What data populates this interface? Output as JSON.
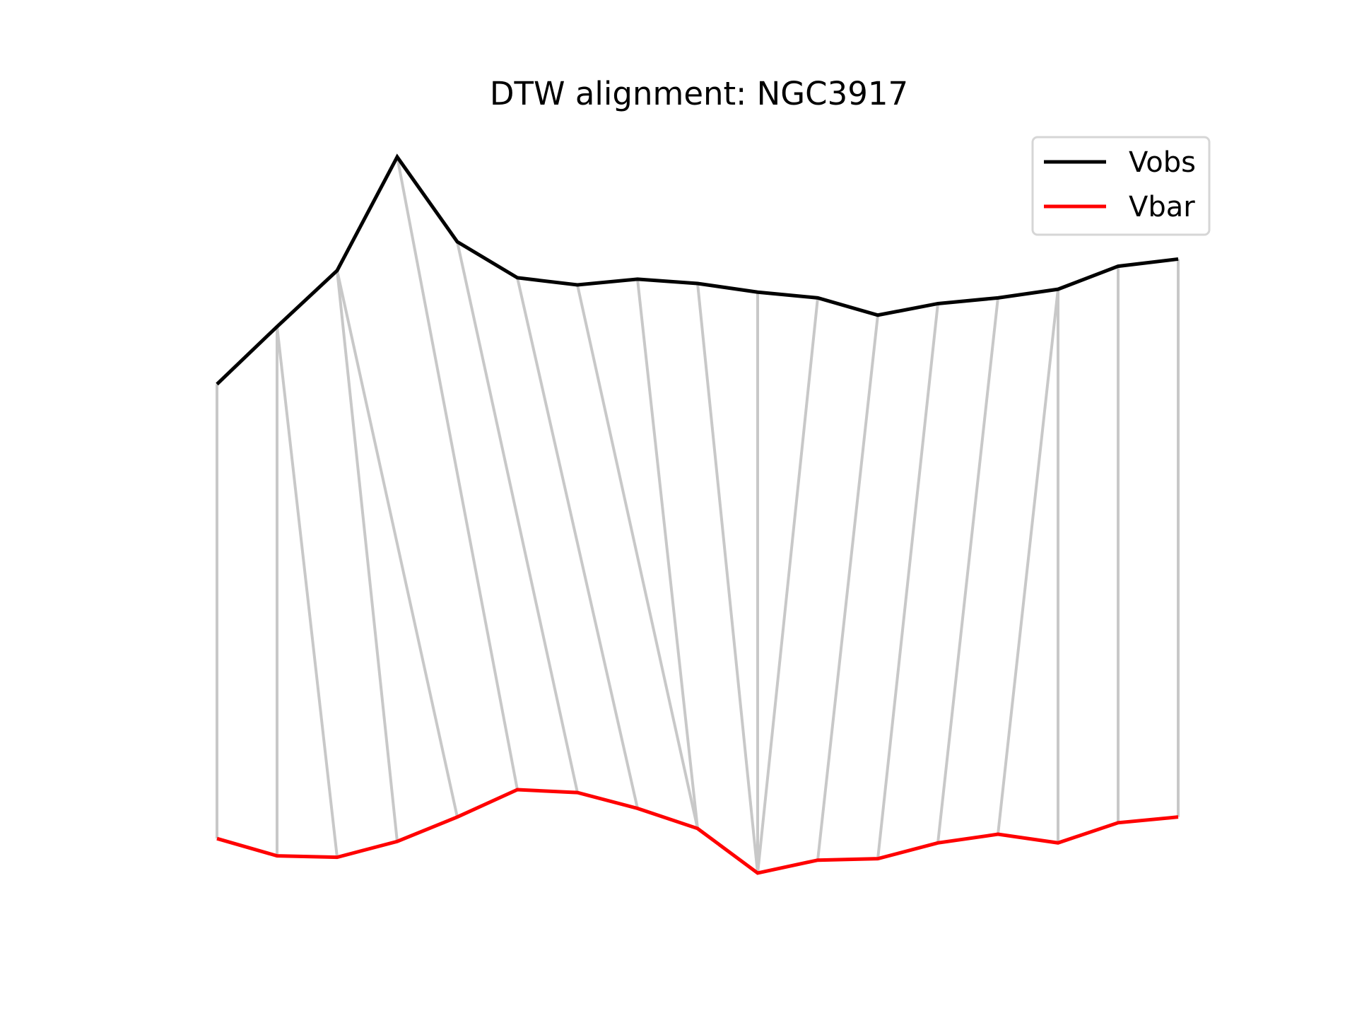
{
  "chart_data": {
    "type": "line",
    "title": "DTW alignment: NGC3917",
    "xlabel": "",
    "ylabel": "",
    "axes_visible": false,
    "grid": false,
    "legend_position": "top-right",
    "x": [
      0,
      1,
      2,
      3,
      4,
      5,
      6,
      7,
      8,
      9,
      10,
      11,
      12,
      13,
      14,
      15,
      16
    ],
    "series": [
      {
        "name": "Vobs",
        "color": "#000000",
        "values": [
          3.94,
          4.34,
          4.73,
          5.52,
          4.93,
          4.68,
          4.63,
          4.67,
          4.64,
          4.58,
          4.54,
          4.42,
          4.5,
          4.54,
          4.6,
          4.76,
          4.81
        ]
      },
      {
        "name": "Vbar",
        "color": "#ff0000",
        "values": [
          0.78,
          0.66,
          0.65,
          0.76,
          0.93,
          1.12,
          1.1,
          0.99,
          0.85,
          0.54,
          0.63,
          0.64,
          0.75,
          0.81,
          0.75,
          0.89,
          0.93
        ]
      }
    ],
    "alignment_line_color": "#c8c8c8",
    "alignment_pairs": [
      [
        0,
        0
      ],
      [
        1,
        1
      ],
      [
        1,
        2
      ],
      [
        2,
        3
      ],
      [
        2,
        4
      ],
      [
        3,
        5
      ],
      [
        4,
        6
      ],
      [
        5,
        7
      ],
      [
        6,
        8
      ],
      [
        7,
        8
      ],
      [
        8,
        9
      ],
      [
        9,
        9
      ],
      [
        10,
        9
      ],
      [
        11,
        10
      ],
      [
        12,
        11
      ],
      [
        13,
        12
      ],
      [
        14,
        13
      ],
      [
        14,
        14
      ],
      [
        15,
        15
      ],
      [
        16,
        16
      ]
    ]
  }
}
